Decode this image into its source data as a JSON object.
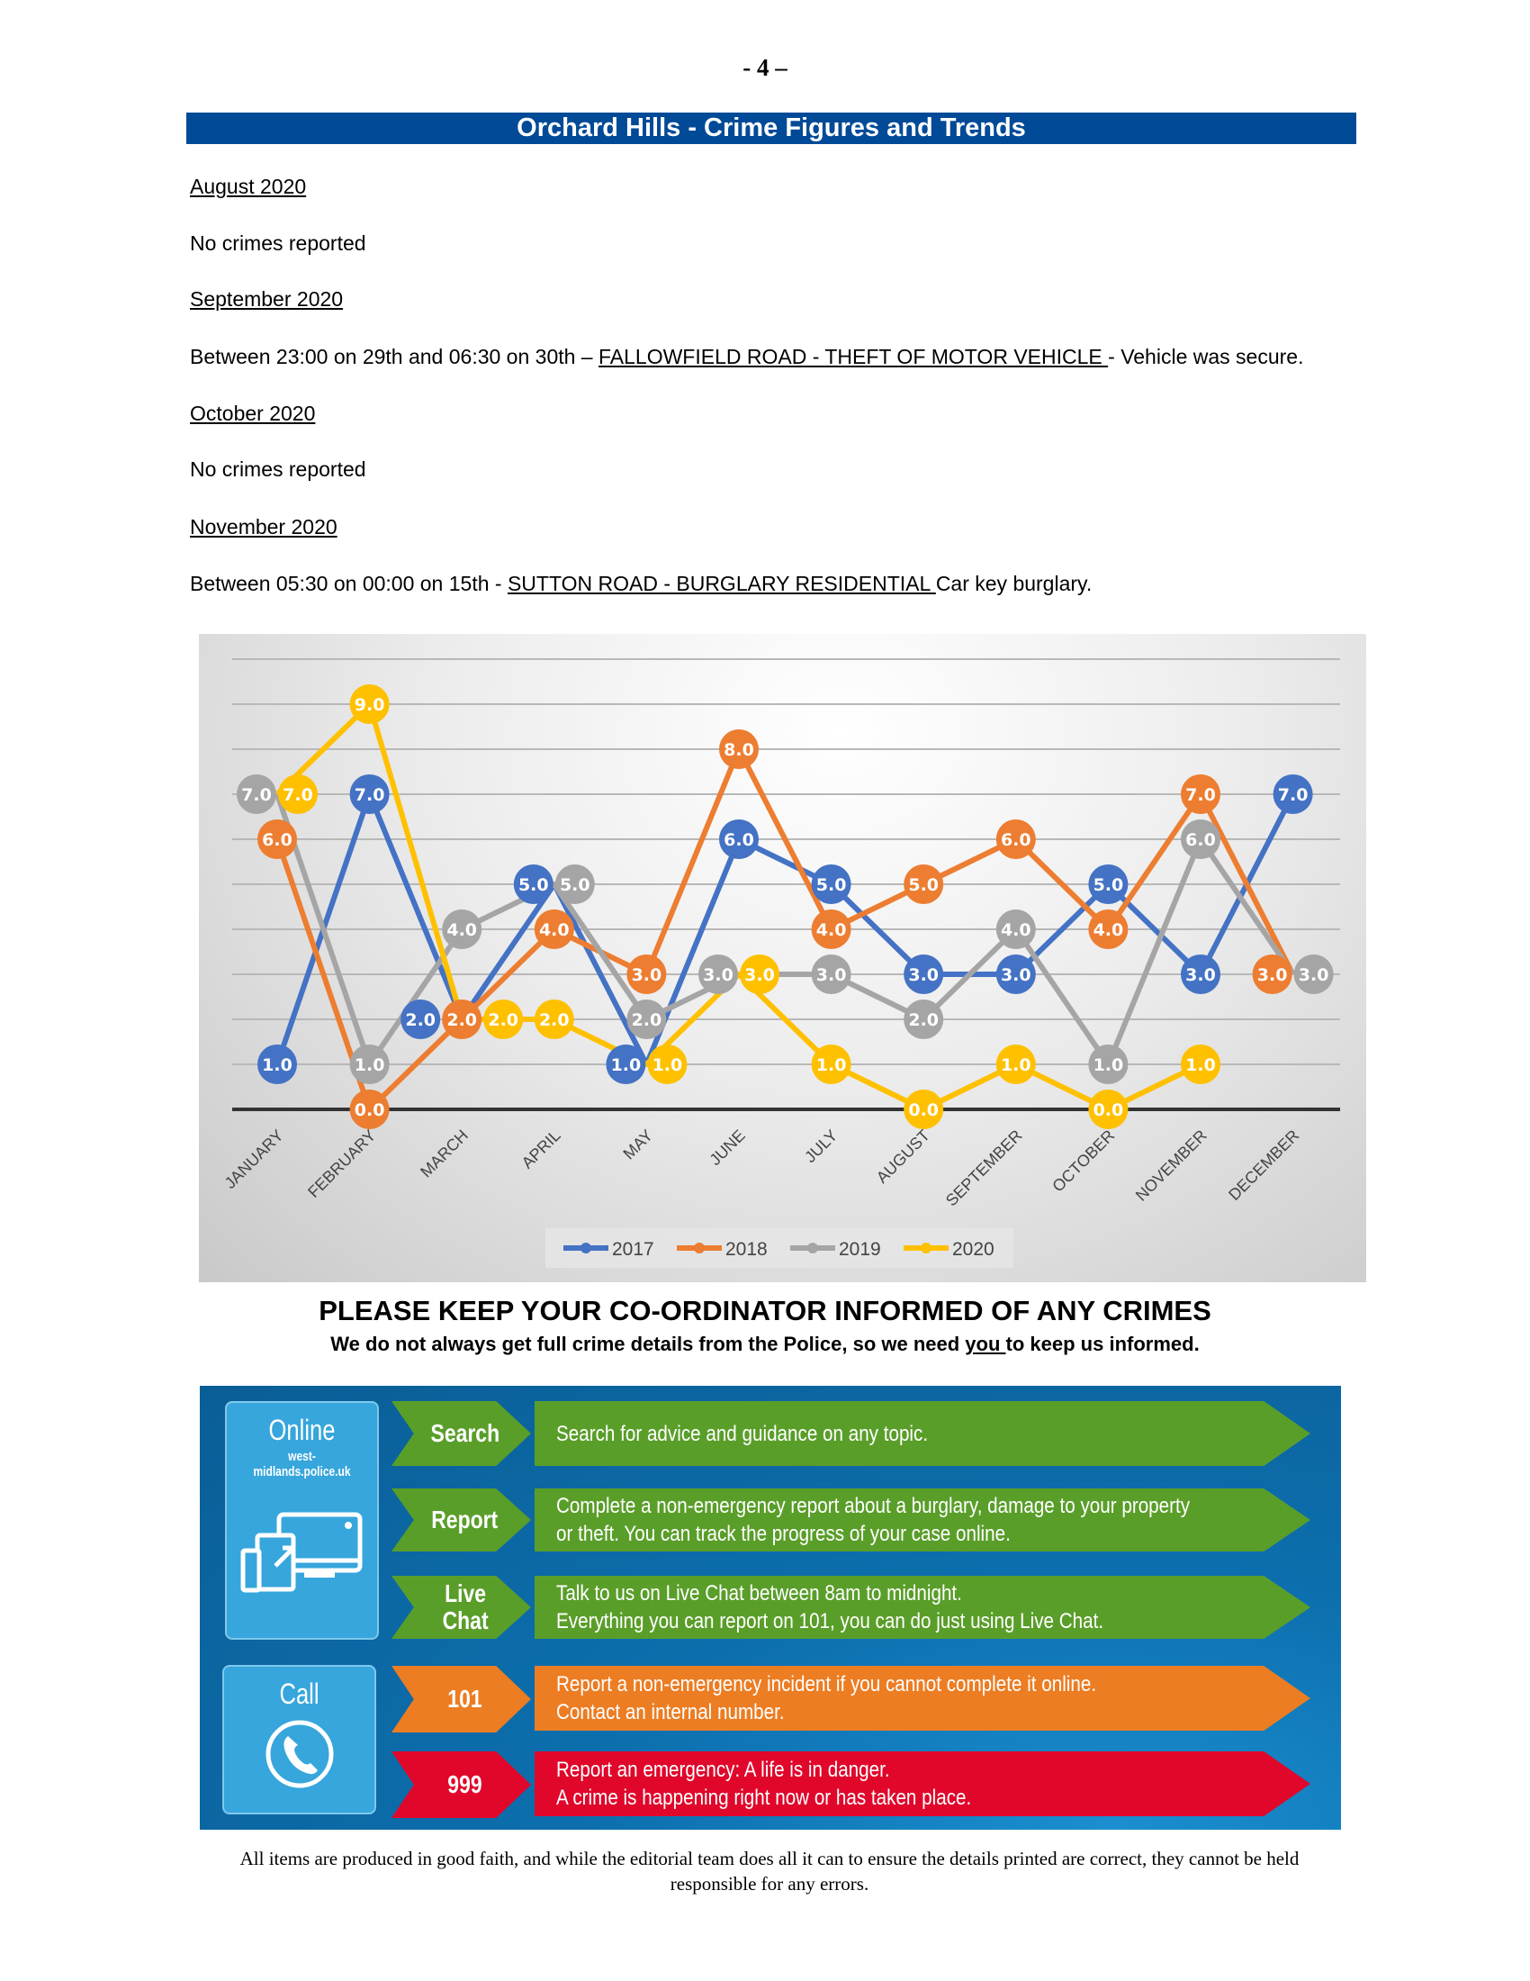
{
  "page_number": "- 4 –",
  "title": "Orchard Hills - Crime Figures and Trends",
  "entries": [
    {
      "heading": "August 2020",
      "text": "No crimes reported"
    },
    {
      "heading": "September 2020",
      "prefix": "Between 23:00 on 29th and 06:30 on 30th – ",
      "link": "FALLOWFIELD ROAD - THEFT OF MOTOR VEHICLE ",
      "suffix": "- Vehicle was secure."
    },
    {
      "heading": "October 2020",
      "text": "No crimes reported"
    },
    {
      "heading": "November 2020",
      "prefix": "Between 05:30 on 00:00 on 15th - ",
      "link": "SUTTON ROAD - BURGLARY RESIDENTIAL ",
      "suffix": "Car key burglary."
    }
  ],
  "chart_data": {
    "type": "line",
    "categories": [
      "JANUARY",
      "FEBRUARY",
      "MARCH",
      "APRIL",
      "MAY",
      "JUNE",
      "JULY",
      "AUGUST",
      "SEPTEMBER",
      "OCTOBER",
      "NOVEMBER",
      "DECEMBER"
    ],
    "series": [
      {
        "name": "2017",
        "color": "#4472c4",
        "values": [
          1,
          7,
          2,
          5,
          1,
          6,
          5,
          3,
          3,
          5,
          3,
          7
        ]
      },
      {
        "name": "2018",
        "color": "#ed7d31",
        "values": [
          6,
          0,
          2,
          4,
          3,
          8,
          4,
          5,
          6,
          4,
          7,
          3
        ]
      },
      {
        "name": "2019",
        "color": "#a5a5a5",
        "values": [
          7,
          1,
          4,
          5,
          2,
          3,
          3,
          2,
          4,
          1,
          6,
          3
        ]
      },
      {
        "name": "2020",
        "color": "#ffc000",
        "values": [
          7,
          9,
          2,
          2,
          1,
          3,
          1,
          0,
          1,
          0,
          1,
          null
        ]
      }
    ],
    "ylim": [
      0,
      10
    ],
    "grid": true,
    "legend": "bottom",
    "data_labels": true
  },
  "cta": {
    "title": "PLEASE KEEP YOUR CO-ORDINATOR INFORMED OF ANY CRIMES",
    "sub_before": "We do not always get full crime details from the Police, so we need ",
    "sub_you": "you ",
    "sub_after": "to keep us informed."
  },
  "infographic": {
    "online": {
      "heading": "Online",
      "site": "west-midlands.police.uk"
    },
    "call": {
      "heading": "Call"
    },
    "rows": [
      {
        "label": "Search",
        "lines": [
          "Search for advice and guidance on any topic."
        ]
      },
      {
        "label": "Report",
        "lines": [
          "Complete a non-emergency report about a burglary, damage to your property",
          "or theft. You can track the progress of your case online."
        ]
      },
      {
        "label": "Live Chat",
        "lines": [
          "Talk to us on Live Chat between 8am to midnight.",
          "Everything you can report on 101, you can do just using Live Chat."
        ]
      },
      {
        "label": "101",
        "lines": [
          "Report a non-emergency incident if you cannot complete it online.",
          "Contact an internal number."
        ]
      },
      {
        "label": "999",
        "lines": [
          "Report an emergency: A life is in danger.",
          "A crime is happening right now or has taken place."
        ]
      }
    ],
    "colors": {
      "green": "#5a9e2a",
      "orange": "#ec7d23",
      "red": "#e0072b",
      "panel": "#36a6dc",
      "background": "#0a5e96"
    }
  },
  "footer": "All items are produced in good faith, and while the editorial team does all it can to ensure the details printed are correct, they cannot be held responsible for any errors."
}
